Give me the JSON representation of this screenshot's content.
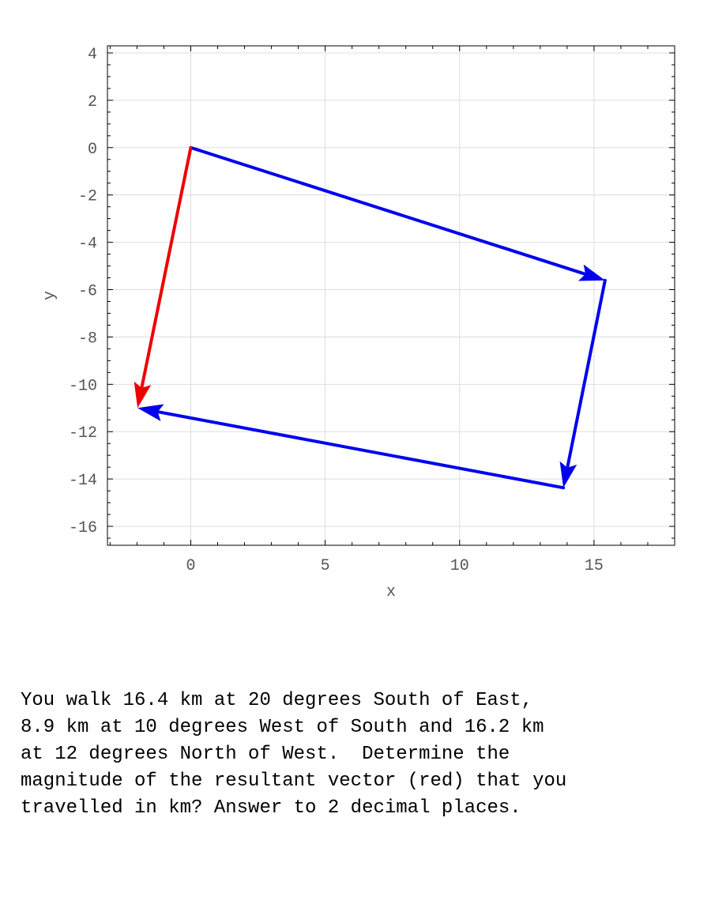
{
  "chart_data": {
    "type": "line",
    "title": "",
    "xlabel": "x",
    "ylabel": "y",
    "xlim": [
      -3.1,
      18
    ],
    "ylim": [
      -16.8,
      4.3
    ],
    "xticks": [
      0,
      5,
      10,
      15
    ],
    "xtick_labels": [
      "0",
      "5",
      "10",
      "15"
    ],
    "yticks": [
      4,
      2,
      0,
      -2,
      -4,
      -6,
      -8,
      -10,
      -12,
      -14,
      -16
    ],
    "ytick_labels": [
      "4",
      "2",
      "0",
      "-2",
      "-4",
      "-6",
      "-8",
      "-10",
      "-12",
      "-14",
      "-16"
    ],
    "grid": true,
    "vectors": [
      {
        "from": [
          0,
          0
        ],
        "to": [
          15.41,
          -5.61
        ],
        "color": "#0000ee",
        "kind": "component"
      },
      {
        "from": [
          15.41,
          -5.61
        ],
        "to": [
          13.86,
          -14.37
        ],
        "color": "#0000ee",
        "kind": "component"
      },
      {
        "from": [
          13.86,
          -14.37
        ],
        "to": [
          -1.98,
          -11.0
        ],
        "color": "#0000ee",
        "kind": "component"
      },
      {
        "from": [
          0,
          0
        ],
        "to": [
          -1.98,
          -11.0
        ],
        "color": "#ee0000",
        "kind": "resultant"
      }
    ]
  },
  "question": {
    "lines": [
      "You walk 16.4 km at 20 degrees South of East,",
      "8.9 km at 10 degrees West of South and 16.2 km",
      "at 12 degrees North of West.  Determine the",
      "magnitude of the resultant vector (red) that you",
      "travelled in km? Answer to 2 decimal places."
    ]
  }
}
